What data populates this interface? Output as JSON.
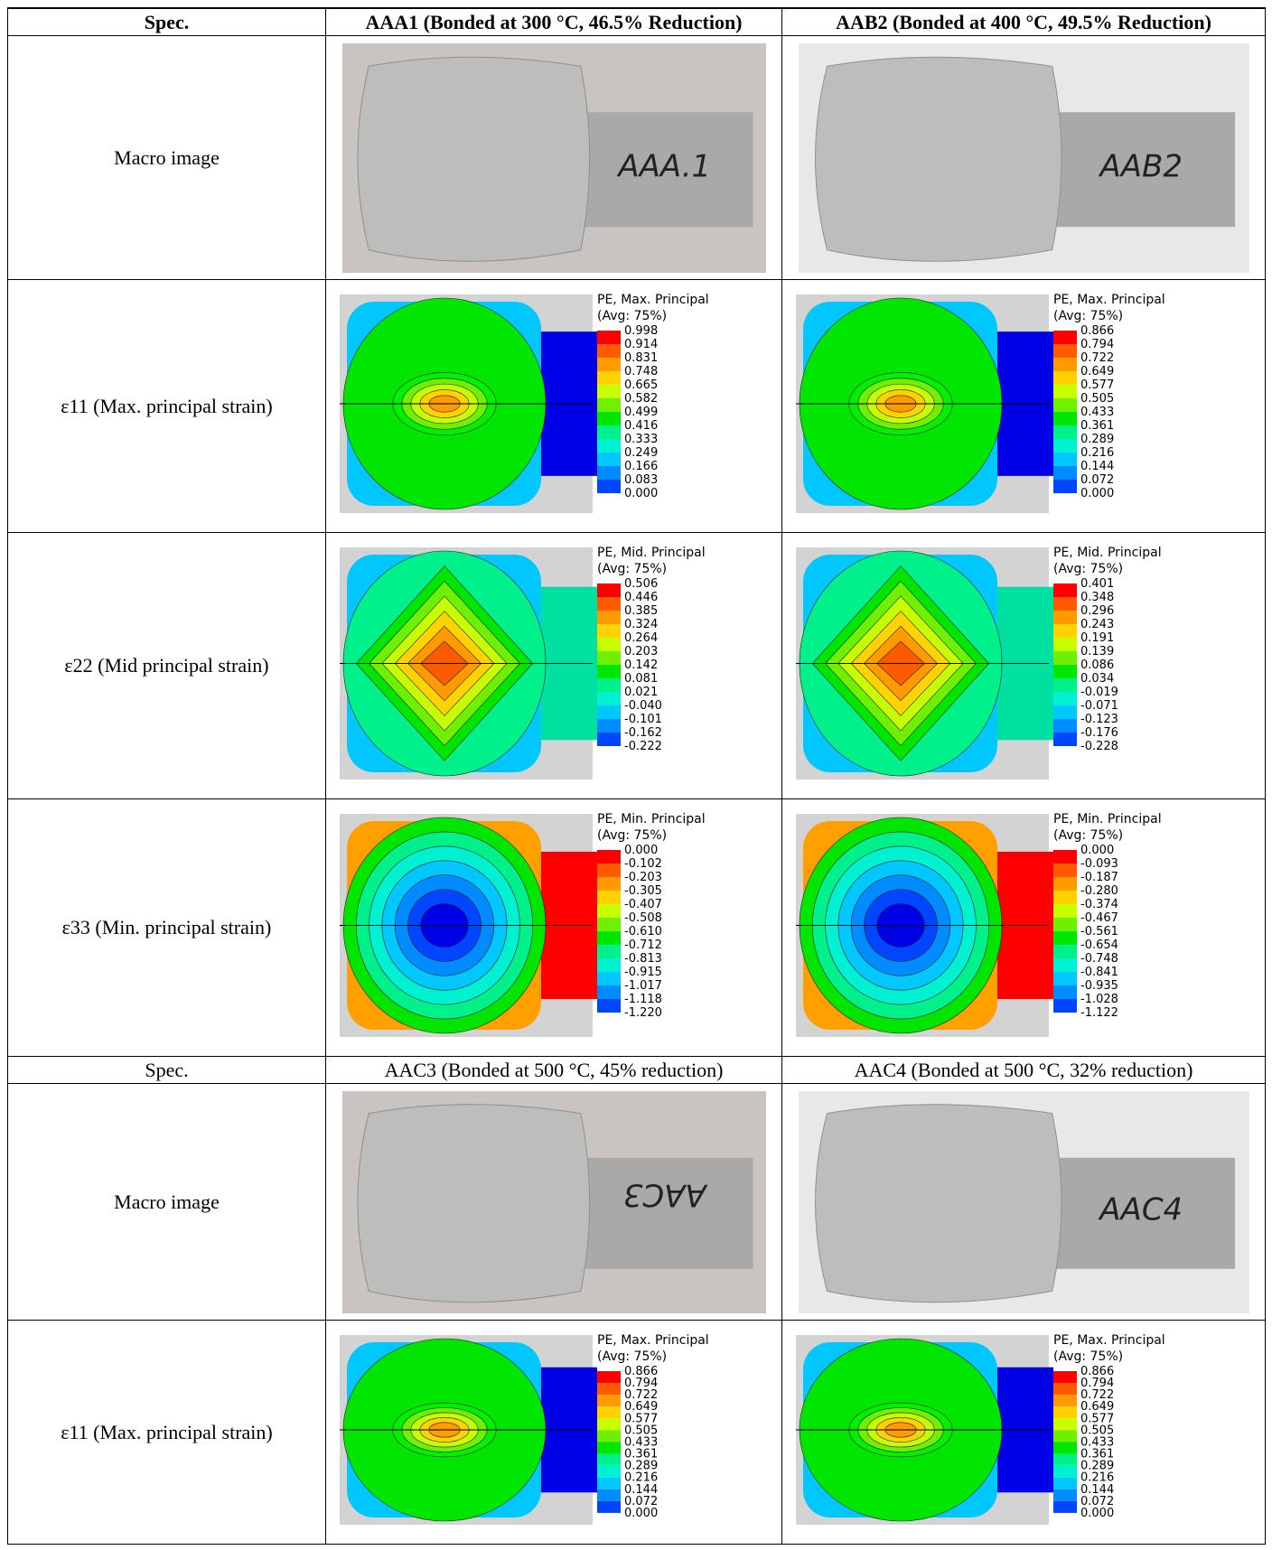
{
  "table": {
    "sections": [
      {
        "header": [
          "Spec.",
          "AAA1 (Bonded at 300 °C, 46.5% Reduction)",
          "AAB2 (Bonded at 400 °C, 49.5% Reduction)"
        ],
        "rows": [
          {
            "label": "Macro image",
            "cells": [
              {
                "marking": "AAA.1"
              },
              {
                "marking": "AAB2"
              }
            ]
          },
          {
            "label": "ε11 (Max. principal strain)",
            "cells": [
              {
                "legend_title": "PE, Max. Principal",
                "legend_avg": "(Avg: 75%)",
                "levels": [
                  "0.998",
                  "0.914",
                  "0.831",
                  "0.748",
                  "0.665",
                  "0.582",
                  "0.499",
                  "0.416",
                  "0.333",
                  "0.249",
                  "0.166",
                  "0.083",
                  "0.000"
                ]
              },
              {
                "legend_title": "PE, Max. Principal",
                "legend_avg": "(Avg: 75%)",
                "levels": [
                  "0.866",
                  "0.794",
                  "0.722",
                  "0.649",
                  "0.577",
                  "0.505",
                  "0.433",
                  "0.361",
                  "0.289",
                  "0.216",
                  "0.144",
                  "0.072",
                  "0.000"
                ]
              }
            ]
          },
          {
            "label": "ε22 (Mid principal strain)",
            "cells": [
              {
                "legend_title": "PE, Mid. Principal",
                "legend_avg": "(Avg: 75%)",
                "levels": [
                  "0.506",
                  "0.446",
                  "0.385",
                  "0.324",
                  "0.264",
                  "0.203",
                  "0.142",
                  "0.081",
                  "0.021",
                  "-0.040",
                  "-0.101",
                  "-0.162",
                  "-0.222"
                ]
              },
              {
                "legend_title": "PE, Mid. Principal",
                "legend_avg": "(Avg: 75%)",
                "levels": [
                  "0.401",
                  "0.348",
                  "0.296",
                  "0.243",
                  "0.191",
                  "0.139",
                  "0.086",
                  "0.034",
                  "-0.019",
                  "-0.071",
                  "-0.123",
                  "-0.176",
                  "-0.228"
                ]
              }
            ]
          },
          {
            "label": "ε33 (Min. principal strain)",
            "cells": [
              {
                "legend_title": "PE, Min. Principal",
                "legend_avg": "(Avg: 75%)",
                "levels": [
                  "0.000",
                  "-0.102",
                  "-0.203",
                  "-0.305",
                  "-0.407",
                  "-0.508",
                  "-0.610",
                  "-0.712",
                  "-0.813",
                  "-0.915",
                  "-1.017",
                  "-1.118",
                  "-1.220"
                ]
              },
              {
                "legend_title": "PE, Min. Principal",
                "legend_avg": "(Avg: 75%)",
                "levels": [
                  "0.000",
                  "-0.093",
                  "-0.187",
                  "-0.280",
                  "-0.374",
                  "-0.467",
                  "-0.561",
                  "-0.654",
                  "-0.748",
                  "-0.841",
                  "-0.935",
                  "-1.028",
                  "-1.122"
                ]
              }
            ]
          }
        ]
      },
      {
        "header": [
          "Spec.",
          "AAC3 (Bonded at 500 °C, 45% reduction)",
          "AAC4 (Bonded at 500 °C, 32% reduction)"
        ],
        "rows": [
          {
            "label": "Macro image",
            "cells": [
              {
                "marking": "AAC3"
              },
              {
                "marking": "AAC4"
              }
            ]
          },
          {
            "label": "ε11 (Max. principal strain)",
            "cells": [
              {
                "legend_title": "PE, Max. Principal",
                "legend_avg": "(Avg: 75%)",
                "levels": [
                  "0.866",
                  "0.794",
                  "0.722",
                  "0.649",
                  "0.577",
                  "0.505",
                  "0.433",
                  "0.361",
                  "0.289",
                  "0.216",
                  "0.144",
                  "0.072",
                  "0.000"
                ]
              },
              {
                "legend_title": "PE, Max. Principal",
                "legend_avg": "(Avg: 75%)",
                "levels": [
                  "0.866",
                  "0.794",
                  "0.722",
                  "0.649",
                  "0.577",
                  "0.505",
                  "0.433",
                  "0.361",
                  "0.289",
                  "0.216",
                  "0.144",
                  "0.072",
                  "0.000"
                ]
              }
            ]
          }
        ]
      }
    ]
  }
}
